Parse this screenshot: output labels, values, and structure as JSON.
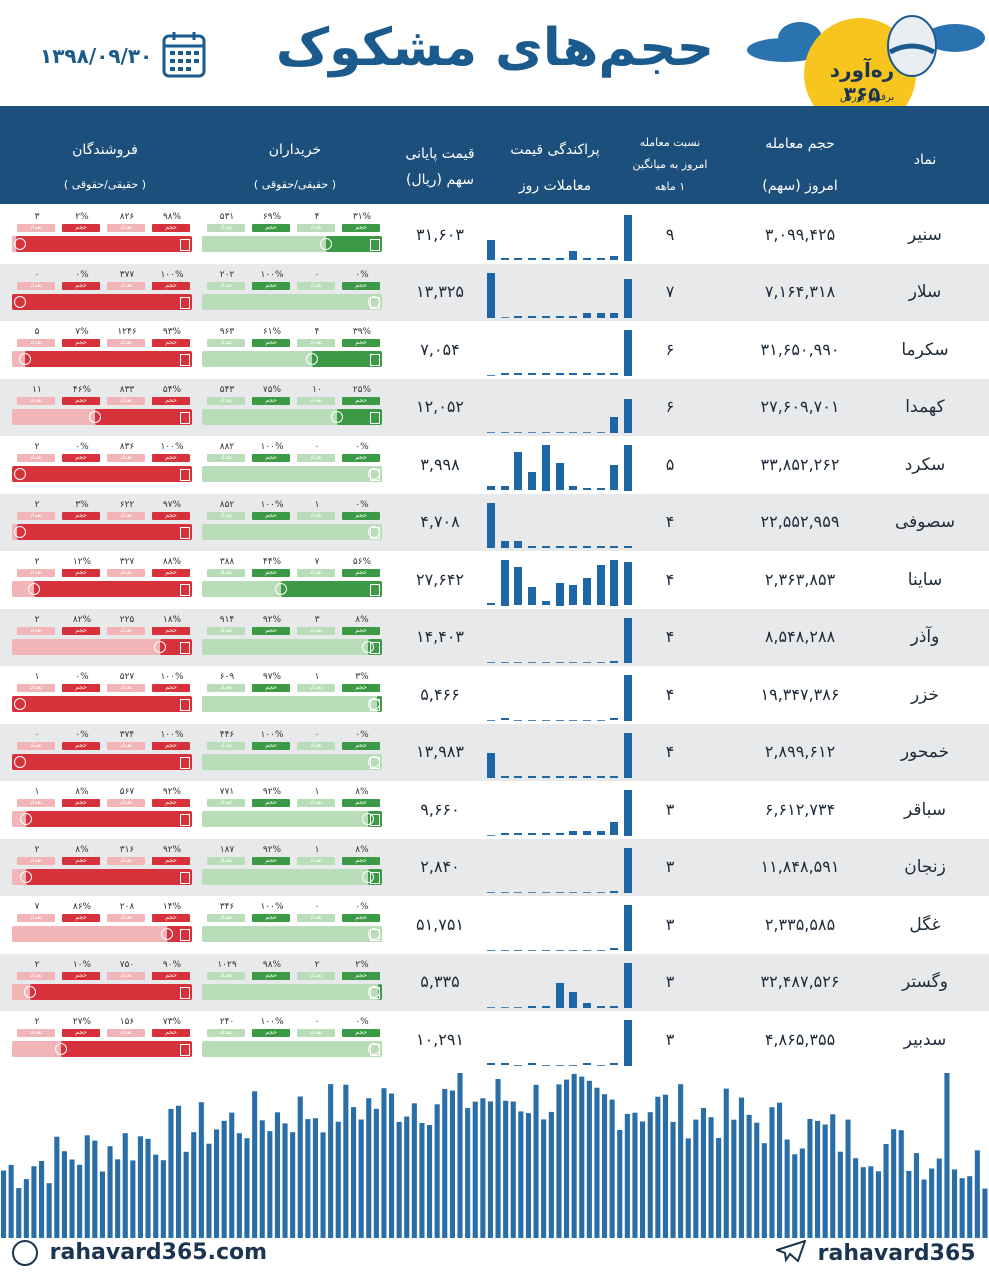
{
  "header": {
    "title": "حجم‌های مشکوک",
    "date": "۱۳۹۸/۰۹/۳۰",
    "logo_text": "ره‌آورد ۳۶۵",
    "logo_sub": "برفراز بورس"
  },
  "columns": {
    "symbol": "نماد",
    "volume_l1": "حجم معامله",
    "volume_l2": "امروز (سهم)",
    "ratio_l1": "نسبت معامله",
    "ratio_l2": "امروز به میانگین",
    "ratio_l3": "۱ ماهه",
    "dispersion_l1": "پراکندگی قیمت",
    "dispersion_l2": "معاملات روز",
    "price_l1": "قیمت پایانی",
    "price_l2": "سهم (ریال)",
    "buyers_l1": "خریداران",
    "buyers_l2": "( حقیقی/حقوقی )",
    "sellers_l1": "فروشندگان",
    "sellers_l2": "( حقیقی/حقوقی )"
  },
  "labels": {
    "vol": "حجم",
    "count": "تعداد"
  },
  "colors": {
    "header": "#1c4f7c",
    "bar": "#1e67a6",
    "green": "#3c9a47",
    "green_light": "#b9dcb9",
    "red": "#d7323c",
    "red_light": "#f1b5b8"
  },
  "rows": [
    {
      "symbol": "سنیر",
      "volume": "۳,۰۹۹,۴۲۵",
      "ratio": "۹",
      "price": "۳۱,۶۰۳",
      "bars": [
        0.45,
        0.05,
        0.05,
        0.05,
        0.05,
        0.05,
        0.2,
        0.05,
        0.05,
        0.1,
        1.0
      ],
      "buy": {
        "ind_pct": "۳۱%",
        "ind_cnt": "۴",
        "corp_pct": "۶۹%",
        "corp_cnt": "۵۳۱",
        "ind_share": 0.31
      },
      "sell": {
        "ind_pct": "۹۸%",
        "ind_cnt": "۸۲۶",
        "corp_pct": "۲%",
        "corp_cnt": "۳",
        "ind_share": 0.98
      }
    },
    {
      "symbol": "سلار",
      "volume": "۷,۱۶۴,۳۱۸",
      "ratio": "۷",
      "price": "۱۳,۳۲۵",
      "bars": [
        1.0,
        0,
        0.05,
        0.05,
        0.05,
        0.05,
        0.05,
        0.1,
        0.1,
        0.1,
        0.85
      ],
      "buy": {
        "ind_pct": "۰%",
        "ind_cnt": "۰",
        "corp_pct": "۱۰۰%",
        "corp_cnt": "۲۰۲",
        "ind_share": 0.0
      },
      "sell": {
        "ind_pct": "۱۰۰%",
        "ind_cnt": "۳۷۷",
        "corp_pct": "۰%",
        "corp_cnt": "۰",
        "ind_share": 1.0
      }
    },
    {
      "symbol": "سکرما",
      "volume": "۳۱,۶۵۰,۹۹۰",
      "ratio": "۶",
      "price": "۷,۰۵۴",
      "bars": [
        0,
        0.05,
        0.05,
        0.05,
        0.05,
        0.05,
        0.05,
        0.05,
        0.05,
        0.05,
        1.0
      ],
      "buy": {
        "ind_pct": "۳۹%",
        "ind_cnt": "۴",
        "corp_pct": "۶۱%",
        "corp_cnt": "۹۶۳",
        "ind_share": 0.39
      },
      "sell": {
        "ind_pct": "۹۳%",
        "ind_cnt": "۱۲۴۶",
        "corp_pct": "۷%",
        "corp_cnt": "۵",
        "ind_share": 0.93
      }
    },
    {
      "symbol": "کهمدا",
      "volume": "۲۷,۶۰۹,۷۰۱",
      "ratio": "۶",
      "price": "۱۲,۰۵۲",
      "bars": [
        0,
        0,
        0,
        0,
        0,
        0,
        0,
        0,
        0,
        0.35,
        0.75
      ],
      "buy": {
        "ind_pct": "۲۵%",
        "ind_cnt": "۱۰",
        "corp_pct": "۷۵%",
        "corp_cnt": "۵۴۳",
        "ind_share": 0.25
      },
      "sell": {
        "ind_pct": "۵۴%",
        "ind_cnt": "۸۳۳",
        "corp_pct": "۴۶%",
        "corp_cnt": "۱۱",
        "ind_share": 0.54
      }
    },
    {
      "symbol": "سکرد",
      "volume": "۳۳,۸۵۲,۲۶۲",
      "ratio": "۵",
      "price": "۳,۹۹۸",
      "bars": [
        0.1,
        0.1,
        0.85,
        0.4,
        1.0,
        0.6,
        0.1,
        0.05,
        0.05,
        0.55,
        1.0
      ],
      "buy": {
        "ind_pct": "۰%",
        "ind_cnt": "۰",
        "corp_pct": "۱۰۰%",
        "corp_cnt": "۸۸۲",
        "ind_share": 0.0
      },
      "sell": {
        "ind_pct": "۱۰۰%",
        "ind_cnt": "۸۳۶",
        "corp_pct": "۰%",
        "corp_cnt": "۲",
        "ind_share": 1.0
      }
    },
    {
      "symbol": "سصوفی",
      "volume": "۲۲,۵۵۲,۹۵۹",
      "ratio": "۴",
      "price": "۴,۷۰۸",
      "bars": [
        1.0,
        0.15,
        0.15,
        0.05,
        0.05,
        0.05,
        0.05,
        0.05,
        0.05,
        0.05,
        0.05
      ],
      "buy": {
        "ind_pct": "۰%",
        "ind_cnt": "۱",
        "corp_pct": "۱۰۰%",
        "corp_cnt": "۸۵۲",
        "ind_share": 0.0
      },
      "sell": {
        "ind_pct": "۹۷%",
        "ind_cnt": "۶۲۲",
        "corp_pct": "۳%",
        "corp_cnt": "۲",
        "ind_share": 0.97
      }
    },
    {
      "symbol": "ساینا",
      "volume": "۲,۳۶۳,۸۵۳",
      "ratio": "۴",
      "price": "۲۷,۶۴۲",
      "bars": [
        0.05,
        1.0,
        0.85,
        0.4,
        0.1,
        0.5,
        0.45,
        0.6,
        0.9,
        1.0,
        0.95
      ],
      "buy": {
        "ind_pct": "۵۶%",
        "ind_cnt": "۷",
        "corp_pct": "۴۴%",
        "corp_cnt": "۳۸۸",
        "ind_share": 0.56
      },
      "sell": {
        "ind_pct": "۸۸%",
        "ind_cnt": "۳۲۷",
        "corp_pct": "۱۲%",
        "corp_cnt": "۲",
        "ind_share": 0.88
      }
    },
    {
      "symbol": "وآذر",
      "volume": "۸,۵۴۸,۲۸۸",
      "ratio": "۴",
      "price": "۱۴,۴۰۳",
      "bars": [
        0,
        0,
        0,
        0,
        0,
        0,
        0,
        0,
        0,
        0.05,
        1.0
      ],
      "buy": {
        "ind_pct": "۸%",
        "ind_cnt": "۳",
        "corp_pct": "۹۲%",
        "corp_cnt": "۹۱۴",
        "ind_share": 0.08
      },
      "sell": {
        "ind_pct": "۱۸%",
        "ind_cnt": "۲۲۵",
        "corp_pct": "۸۲%",
        "corp_cnt": "۲",
        "ind_share": 0.18
      }
    },
    {
      "symbol": "خزر",
      "volume": "۱۹,۳۴۷,۳۸۶",
      "ratio": "۴",
      "price": "۵,۴۶۶",
      "bars": [
        0,
        0.05,
        0,
        0,
        0,
        0,
        0,
        0,
        0,
        0.05,
        1.0
      ],
      "buy": {
        "ind_pct": "۳%",
        "ind_cnt": "۱",
        "corp_pct": "۹۷%",
        "corp_cnt": "۶۰۹",
        "ind_share": 0.03
      },
      "sell": {
        "ind_pct": "۱۰۰%",
        "ind_cnt": "۵۲۷",
        "corp_pct": "۰%",
        "corp_cnt": "۱",
        "ind_share": 1.0
      }
    },
    {
      "symbol": "خمحور",
      "volume": "۲,۸۹۹,۶۱۲",
      "ratio": "۴",
      "price": "۱۳,۹۸۳",
      "bars": [
        0.55,
        0.05,
        0.05,
        0.05,
        0.05,
        0.05,
        0.05,
        0.05,
        0.05,
        0.05,
        1.0
      ],
      "buy": {
        "ind_pct": "۰%",
        "ind_cnt": "۰",
        "corp_pct": "۱۰۰%",
        "corp_cnt": "۴۴۶",
        "ind_share": 0.0
      },
      "sell": {
        "ind_pct": "۱۰۰%",
        "ind_cnt": "۳۷۴",
        "corp_pct": "۰%",
        "corp_cnt": "۰",
        "ind_share": 1.0
      }
    },
    {
      "symbol": "سباقر",
      "volume": "۶,۶۱۲,۷۳۴",
      "ratio": "۳",
      "price": "۹,۶۶۰",
      "bars": [
        0,
        0.05,
        0.05,
        0.05,
        0.05,
        0.05,
        0.1,
        0.1,
        0.1,
        0.3,
        1.0
      ],
      "buy": {
        "ind_pct": "۸%",
        "ind_cnt": "۱",
        "corp_pct": "۹۲%",
        "corp_cnt": "۷۷۱",
        "ind_share": 0.08
      },
      "sell": {
        "ind_pct": "۹۲%",
        "ind_cnt": "۵۶۷",
        "corp_pct": "۸%",
        "corp_cnt": "۱",
        "ind_share": 0.92
      }
    },
    {
      "symbol": "زنجان",
      "volume": "۱۱,۸۴۸,۵۹۱",
      "ratio": "۳",
      "price": "۲,۸۴۰",
      "bars": [
        0,
        0,
        0,
        0,
        0,
        0,
        0,
        0,
        0,
        0.05,
        1.0
      ],
      "buy": {
        "ind_pct": "۸%",
        "ind_cnt": "۱",
        "corp_pct": "۹۲%",
        "corp_cnt": "۱۸۷",
        "ind_share": 0.08
      },
      "sell": {
        "ind_pct": "۹۲%",
        "ind_cnt": "۳۱۶",
        "corp_pct": "۸%",
        "corp_cnt": "۲",
        "ind_share": 0.92
      }
    },
    {
      "symbol": "غگل",
      "volume": "۲,۳۳۵,۵۸۵",
      "ratio": "۳",
      "price": "۵۱,۷۵۱",
      "bars": [
        0,
        0,
        0,
        0,
        0,
        0,
        0,
        0,
        0,
        0.05,
        1.0
      ],
      "buy": {
        "ind_pct": "۰%",
        "ind_cnt": "۰",
        "corp_pct": "۱۰۰%",
        "corp_cnt": "۳۴۶",
        "ind_share": 0.0
      },
      "sell": {
        "ind_pct": "۱۴%",
        "ind_cnt": "۲۰۸",
        "corp_pct": "۸۶%",
        "corp_cnt": "۷",
        "ind_share": 0.14
      }
    },
    {
      "symbol": "وگستر",
      "volume": "۳۲,۴۸۷,۵۲۶",
      "ratio": "۳",
      "price": "۵,۳۳۵",
      "bars": [
        0,
        0,
        0,
        0.05,
        0.05,
        0.55,
        0.35,
        0.1,
        0.05,
        0.05,
        1.0
      ],
      "buy": {
        "ind_pct": "۲%",
        "ind_cnt": "۲",
        "corp_pct": "۹۸%",
        "corp_cnt": "۱۰۲۹",
        "ind_share": 0.02
      },
      "sell": {
        "ind_pct": "۹۰%",
        "ind_cnt": "۷۵۰",
        "corp_pct": "۱۰%",
        "corp_cnt": "۲",
        "ind_share": 0.9
      }
    },
    {
      "symbol": "سدبیر",
      "volume": "۴,۸۶۵,۳۵۵",
      "ratio": "۳",
      "price": "۱۰,۲۹۱",
      "bars": [
        0.05,
        0.05,
        0,
        0.05,
        0,
        0,
        0,
        0.05,
        0,
        0.05,
        1.0
      ],
      "buy": {
        "ind_pct": "۰%",
        "ind_cnt": "۰",
        "corp_pct": "۱۰۰%",
        "corp_cnt": "۲۴۰",
        "ind_share": 0.0
      },
      "sell": {
        "ind_pct": "۷۳%",
        "ind_cnt": "۱۵۶",
        "corp_pct": "۲۷%",
        "corp_cnt": "۲",
        "ind_share": 0.73
      }
    }
  ],
  "footer": {
    "website": "rahavard365.com",
    "telegram": "rahavard365"
  }
}
